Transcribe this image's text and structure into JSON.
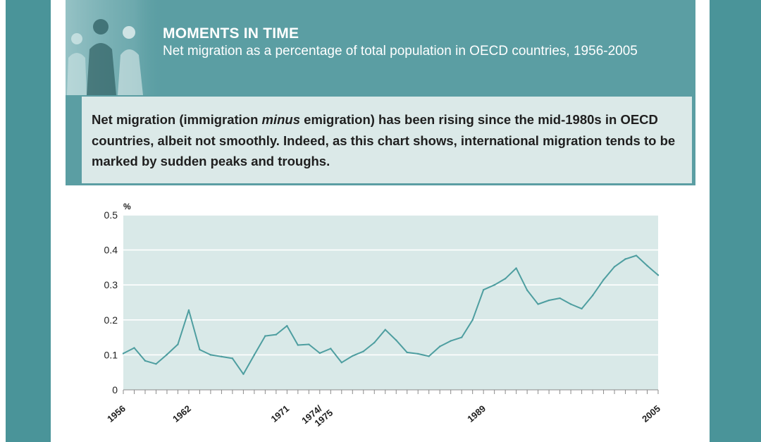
{
  "header": {
    "title": "MOMENTS IN TIME",
    "subtitle": "Net migration as a percentage of total population in OECD countries, 1956-2005"
  },
  "intro": {
    "part1": "Net migration (immigration ",
    "emphasis": "minus",
    "part2": " emigration) has been rising since the mid-1980s in OECD countries, albeit not smoothly. Indeed, as this chart shows, international migration tends to be marked by sudden peaks and troughs."
  },
  "colors": {
    "frame": "#5b9ea3",
    "side_band": "#4a9499",
    "intro_bg": "#dbe9e8",
    "plot_bg": "#d9e9e8",
    "line": "#4e9ea0",
    "text": "#1f1f1f"
  },
  "chart_data": {
    "type": "line",
    "title": "",
    "xlabel": "",
    "ylabel": "%",
    "ylim": [
      0,
      0.5
    ],
    "yticks": [
      0,
      0.1,
      0.2,
      0.3,
      0.4,
      0.5
    ],
    "ytick_labels": [
      "0",
      "0.1",
      "0.2",
      "0.3",
      "0.4",
      "0.5"
    ],
    "xlim": [
      1956,
      2005
    ],
    "xtick_labels": [
      "1956",
      "1962",
      "1971",
      "1974/1975",
      "1989",
      "2005"
    ],
    "grid": true,
    "series": [
      {
        "name": "",
        "x": [
          1956,
          1957,
          1958,
          1959,
          1960,
          1961,
          1962,
          1963,
          1964,
          1965,
          1966,
          1967,
          1968,
          1969,
          1970,
          1971,
          1972,
          1973,
          1974,
          1975,
          1976,
          1977,
          1978,
          1979,
          1980,
          1981,
          1982,
          1983,
          1984,
          1985,
          1986,
          1987,
          1988,
          1989,
          1990,
          1991,
          1992,
          1993,
          1994,
          1995,
          1996,
          1997,
          1998,
          1999,
          2000,
          2001,
          2002,
          2003,
          2004,
          2005
        ],
        "values": [
          0.104,
          0.12,
          0.083,
          0.074,
          0.101,
          0.13,
          0.228,
          0.115,
          0.1,
          0.095,
          0.09,
          0.045,
          0.1,
          0.154,
          0.158,
          0.183,
          0.128,
          0.13,
          0.105,
          0.118,
          0.078,
          0.097,
          0.11,
          0.135,
          0.172,
          0.142,
          0.107,
          0.103,
          0.096,
          0.124,
          0.14,
          0.15,
          0.2,
          0.286,
          0.3,
          0.318,
          0.348,
          0.285,
          0.245,
          0.256,
          0.262,
          0.245,
          0.232,
          0.27,
          0.315,
          0.352,
          0.374,
          0.384,
          0.355,
          0.328
        ]
      }
    ]
  }
}
